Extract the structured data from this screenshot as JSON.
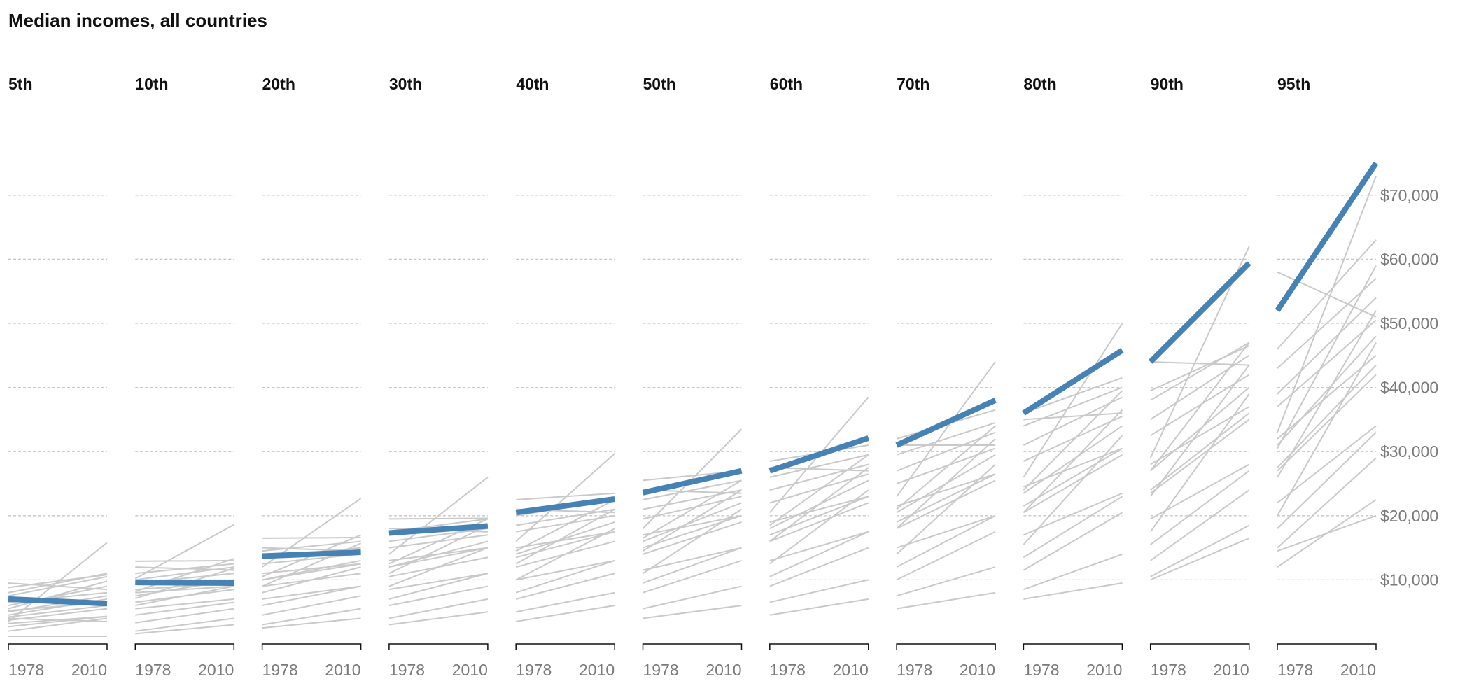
{
  "title": "Median incomes, all countries",
  "colors": {
    "median": "#4682b4",
    "country": "#c9c9c9",
    "grid": "#c6c6c6"
  },
  "chart_data": {
    "type": "line",
    "title": "Median incomes, all countries",
    "x": [
      1978,
      2010
    ],
    "xticks": [
      "1978",
      "2010"
    ],
    "ylim": [
      0,
      75000
    ],
    "yticks": [
      10000,
      20000,
      30000,
      40000,
      50000,
      60000,
      70000
    ],
    "ytick_labels": [
      "$10,000",
      "$20,000",
      "$30,000",
      "$40,000",
      "$50,000",
      "$60,000",
      "$70,000"
    ],
    "grid": true,
    "panels": [
      {
        "label": "5th",
        "median": [
          7000,
          6300
        ],
        "countries": [
          [
            8800,
            10800
          ],
          [
            7500,
            10500
          ],
          [
            5500,
            9800
          ],
          [
            8000,
            11000
          ],
          [
            6000,
            9000
          ],
          [
            3500,
            15800
          ],
          [
            4500,
            7000
          ],
          [
            3700,
            5500
          ],
          [
            6500,
            8000
          ],
          [
            2700,
            4300
          ],
          [
            5000,
            7500
          ],
          [
            3200,
            4300
          ],
          [
            1200,
            1200
          ],
          [
            2000,
            4000
          ],
          [
            5200,
            6500
          ],
          [
            4200,
            6000
          ],
          [
            9500,
            8500
          ],
          [
            4000,
            3500
          ]
        ]
      },
      {
        "label": "10th",
        "median": [
          9600,
          9500
        ],
        "countries": [
          [
            12900,
            13000
          ],
          [
            10200,
            18600
          ],
          [
            8200,
            13300
          ],
          [
            7100,
            11800
          ],
          [
            10000,
            12000
          ],
          [
            11000,
            12500
          ],
          [
            8000,
            9000
          ],
          [
            6000,
            9000
          ],
          [
            7500,
            10000
          ],
          [
            4500,
            6500
          ],
          [
            6500,
            8500
          ],
          [
            1600,
            3000
          ],
          [
            2000,
            4000
          ],
          [
            3300,
            5500
          ],
          [
            9500,
            11000
          ],
          [
            5500,
            7000
          ],
          [
            12000,
            11500
          ],
          [
            8500,
            9500
          ]
        ]
      },
      {
        "label": "20th",
        "median": [
          13700,
          14300
        ],
        "countries": [
          [
            16500,
            16600
          ],
          [
            12000,
            22700
          ],
          [
            10500,
            17000
          ],
          [
            9000,
            15700
          ],
          [
            13500,
            15000
          ],
          [
            14500,
            16000
          ],
          [
            10000,
            12500
          ],
          [
            8000,
            12000
          ],
          [
            10000,
            13000
          ],
          [
            6000,
            9000
          ],
          [
            9000,
            11000
          ],
          [
            2500,
            4000
          ],
          [
            3000,
            5500
          ],
          [
            4500,
            7500
          ],
          [
            12500,
            14000
          ],
          [
            7000,
            9000
          ],
          [
            15000,
            14500
          ],
          [
            11000,
            12500
          ]
        ]
      },
      {
        "label": "30th",
        "median": [
          17300,
          18400
        ],
        "countries": [
          [
            19500,
            19600
          ],
          [
            14000,
            26000
          ],
          [
            12500,
            19500
          ],
          [
            11000,
            18500
          ],
          [
            16000,
            18000
          ],
          [
            17500,
            19500
          ],
          [
            12000,
            15000
          ],
          [
            9000,
            15000
          ],
          [
            12000,
            16000
          ],
          [
            7000,
            11000
          ],
          [
            10500,
            13500
          ],
          [
            3000,
            5000
          ],
          [
            4000,
            7000
          ],
          [
            6000,
            9000
          ],
          [
            15000,
            17000
          ],
          [
            8500,
            11000
          ],
          [
            18000,
            17500
          ],
          [
            13000,
            15000
          ]
        ]
      },
      {
        "label": "40th",
        "median": [
          20500,
          22600
        ],
        "countries": [
          [
            22500,
            23500
          ],
          [
            16000,
            29700
          ],
          [
            14500,
            22500
          ],
          [
            12500,
            21000
          ],
          [
            18500,
            21000
          ],
          [
            20000,
            22500
          ],
          [
            13500,
            17500
          ],
          [
            10000,
            18000
          ],
          [
            14000,
            19000
          ],
          [
            8000,
            13000
          ],
          [
            12000,
            16000
          ],
          [
            3500,
            6000
          ],
          [
            5000,
            8000
          ],
          [
            7000,
            11000
          ],
          [
            17500,
            20000
          ],
          [
            10000,
            13000
          ],
          [
            21000,
            20500
          ],
          [
            15000,
            17500
          ]
        ]
      },
      {
        "label": "50th",
        "median": [
          23600,
          27000
        ],
        "countries": [
          [
            25500,
            27000
          ],
          [
            18000,
            33500
          ],
          [
            16500,
            25500
          ],
          [
            14500,
            24000
          ],
          [
            21000,
            24000
          ],
          [
            22500,
            25500
          ],
          [
            15000,
            20000
          ],
          [
            11000,
            21000
          ],
          [
            16000,
            22000
          ],
          [
            9500,
            15000
          ],
          [
            14000,
            19000
          ],
          [
            4000,
            6000
          ],
          [
            5500,
            9000
          ],
          [
            8000,
            13000
          ],
          [
            19500,
            23000
          ],
          [
            11500,
            15000
          ],
          [
            24000,
            23500
          ],
          [
            17000,
            20000
          ]
        ]
      },
      {
        "label": "60th",
        "median": [
          27000,
          32100
        ],
        "countries": [
          [
            28500,
            31000
          ],
          [
            20500,
            38500
          ],
          [
            18500,
            29500
          ],
          [
            16000,
            27500
          ],
          [
            24000,
            28000
          ],
          [
            26000,
            29500
          ],
          [
            17000,
            23000
          ],
          [
            12500,
            24000
          ],
          [
            18000,
            25500
          ],
          [
            10500,
            17500
          ],
          [
            16000,
            22000
          ],
          [
            4500,
            7000
          ],
          [
            6500,
            10000
          ],
          [
            9000,
            15000
          ],
          [
            22000,
            26500
          ],
          [
            13000,
            17500
          ],
          [
            27500,
            27000
          ],
          [
            19000,
            23000
          ]
        ]
      },
      {
        "label": "70th",
        "median": [
          31000,
          38000
        ],
        "countries": [
          [
            32000,
            36500
          ],
          [
            23000,
            44000
          ],
          [
            21000,
            34000
          ],
          [
            18000,
            32000
          ],
          [
            27000,
            33000
          ],
          [
            29500,
            34500
          ],
          [
            19000,
            26500
          ],
          [
            14000,
            28000
          ],
          [
            20500,
            29500
          ],
          [
            12000,
            20000
          ],
          [
            18000,
            25500
          ],
          [
            5500,
            8000
          ],
          [
            7500,
            12000
          ],
          [
            10000,
            17500
          ],
          [
            25000,
            30500
          ],
          [
            15000,
            20000
          ],
          [
            31000,
            31000
          ],
          [
            21500,
            26500
          ]
        ]
      },
      {
        "label": "80th",
        "median": [
          36000,
          45800
        ],
        "countries": [
          [
            36000,
            41500
          ],
          [
            26000,
            50000
          ],
          [
            24000,
            39500
          ],
          [
            20500,
            36500
          ],
          [
            31000,
            38500
          ],
          [
            34000,
            40000
          ],
          [
            21500,
            30500
          ],
          [
            15500,
            32500
          ],
          [
            23500,
            34000
          ],
          [
            13500,
            23000
          ],
          [
            20500,
            29500
          ],
          [
            7000,
            9500
          ],
          [
            8500,
            14000
          ],
          [
            11500,
            20500
          ],
          [
            28500,
            35500
          ],
          [
            17000,
            23500
          ],
          [
            35000,
            36000
          ],
          [
            24500,
            30500
          ]
        ]
      },
      {
        "label": "90th",
        "median": [
          44000,
          59400
        ],
        "countries": [
          [
            39500,
            46500
          ],
          [
            29000,
            62000
          ],
          [
            27000,
            47000
          ],
          [
            23000,
            43500
          ],
          [
            35000,
            45000
          ],
          [
            38000,
            47000
          ],
          [
            24000,
            36000
          ],
          [
            17500,
            39000
          ],
          [
            27000,
            40000
          ],
          [
            15500,
            27000
          ],
          [
            23500,
            35000
          ],
          [
            10500,
            18500
          ],
          [
            10000,
            16500
          ],
          [
            13000,
            24000
          ],
          [
            32500,
            42000
          ],
          [
            19500,
            28000
          ],
          [
            44000,
            43500
          ],
          [
            28000,
            37000
          ]
        ]
      },
      {
        "label": "95th",
        "median": [
          52000,
          75000
        ],
        "countries": [
          [
            46000,
            63000
          ],
          [
            33000,
            73000
          ],
          [
            30500,
            59000
          ],
          [
            26000,
            52000
          ],
          [
            39000,
            54000
          ],
          [
            43000,
            57000
          ],
          [
            27500,
            43500
          ],
          [
            20000,
            47000
          ],
          [
            31000,
            48000
          ],
          [
            18000,
            33000
          ],
          [
            27000,
            42000
          ],
          [
            12000,
            22500
          ],
          [
            14500,
            20000
          ],
          [
            15000,
            29000
          ],
          [
            37000,
            50500
          ],
          [
            22000,
            34000
          ],
          [
            58000,
            51000
          ],
          [
            32000,
            45000
          ]
        ]
      }
    ]
  }
}
